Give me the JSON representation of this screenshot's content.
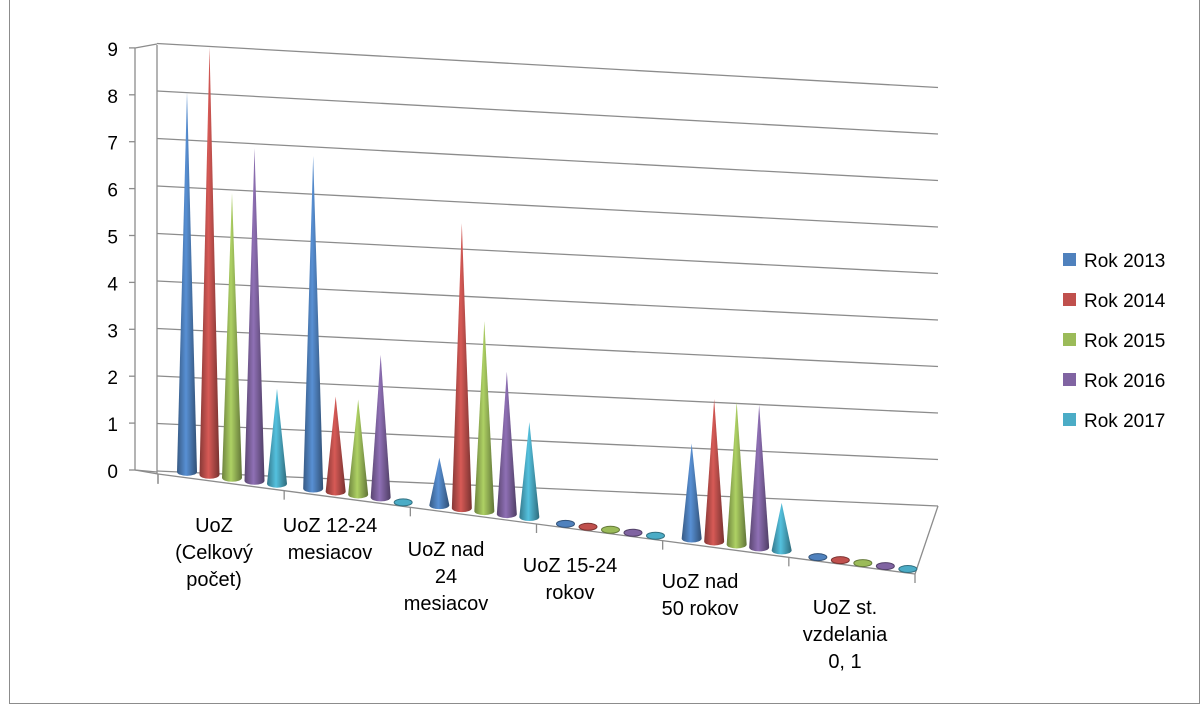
{
  "chart_data": {
    "type": "bar",
    "subtype": "3d-cone",
    "categories": [
      [
        "UoZ",
        "(Celkový",
        "počet)"
      ],
      [
        "UoZ 12-24",
        "mesiacov"
      ],
      [
        "UoZ nad",
        "24",
        "mesiacov"
      ],
      [
        "UoZ 15-24",
        "rokov"
      ],
      [
        "UoZ nad",
        "50 rokov"
      ],
      [
        "UoZ st.",
        "vzdelania",
        "0, 1"
      ]
    ],
    "series": [
      {
        "name": "Rok 2013",
        "color": "#4f81bd",
        "values": [
          8,
          7,
          1,
          0,
          2,
          0
        ]
      },
      {
        "name": "Rok 2014",
        "color": "#c0504d",
        "values": [
          9,
          2,
          6,
          0,
          3,
          0
        ]
      },
      {
        "name": "Rok 2015",
        "color": "#9bbb59",
        "values": [
          6,
          2,
          4,
          0,
          3,
          0
        ]
      },
      {
        "name": "Rok 2016",
        "color": "#8064a2",
        "values": [
          7,
          3,
          3,
          0,
          3,
          0
        ]
      },
      {
        "name": "Rok 2017",
        "color": "#4bacc6",
        "values": [
          2,
          0,
          2,
          0,
          1,
          0
        ]
      }
    ],
    "y_ticks": [
      "0",
      "1",
      "2",
      "3",
      "4",
      "5",
      "6",
      "7",
      "8",
      "9"
    ],
    "ylim": [
      0,
      9
    ],
    "grid": true,
    "legend_position": "right"
  }
}
